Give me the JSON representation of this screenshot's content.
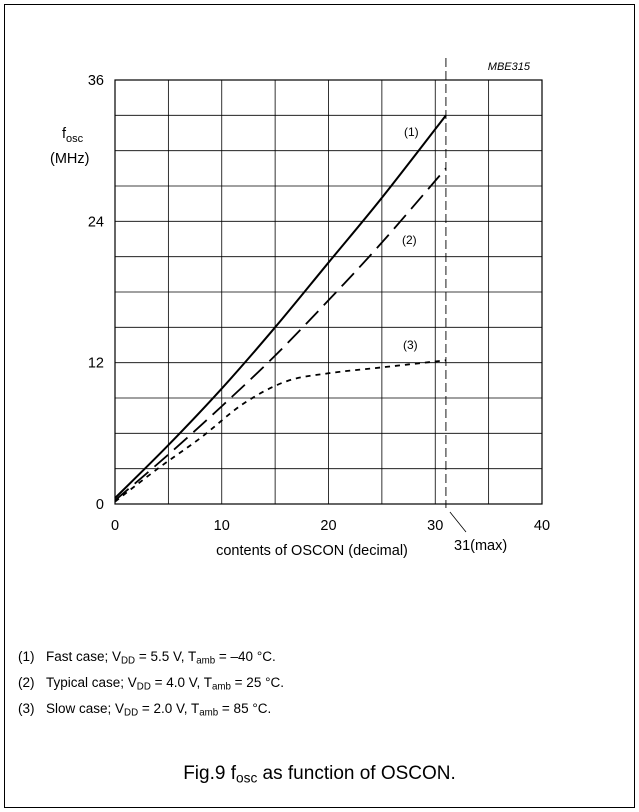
{
  "chart_data": {
    "type": "line",
    "code": "MBE315",
    "xlabel": "contents of OSCON (decimal)",
    "ylabel": {
      "main": "f",
      "sub": "osc",
      "unit": "(MHz)"
    },
    "xlim": [
      0,
      40
    ],
    "ylim": [
      0,
      36
    ],
    "x_ticks": [
      "0",
      "10",
      "20",
      "30",
      "40"
    ],
    "y_ticks": [
      "0",
      "12",
      "24",
      "36"
    ],
    "grid": true,
    "max_marker": {
      "x": 31,
      "label": "31(max)"
    },
    "series": [
      {
        "label": "(1)",
        "dash": "solid",
        "x": [
          0,
          5,
          10,
          15,
          20,
          25,
          31
        ],
        "y": [
          0.5,
          5,
          9.8,
          15,
          20.5,
          26,
          33
        ]
      },
      {
        "label": "(2)",
        "dash": "long",
        "x": [
          0,
          5,
          10,
          15,
          20,
          25,
          31
        ],
        "y": [
          0.3,
          4.2,
          8.3,
          12.6,
          17.3,
          22.2,
          28.5
        ]
      },
      {
        "label": "(3)",
        "dash": "short",
        "x": [
          0,
          4,
          8,
          12,
          16,
          20,
          25,
          31
        ],
        "y": [
          0.2,
          3,
          5.6,
          8.5,
          10.4,
          11.1,
          11.6,
          12.2
        ]
      }
    ]
  },
  "notes": [
    {
      "num": "(1)",
      "parts": [
        [
          "Fast case; V",
          ""
        ],
        [
          "DD",
          "sub"
        ],
        [
          " = 5.5 V, T",
          ""
        ],
        [
          "amb",
          "sub"
        ],
        [
          " = –40 °C.",
          ""
        ]
      ]
    },
    {
      "num": "(2)",
      "parts": [
        [
          "Typical case; V",
          ""
        ],
        [
          "DD",
          "sub"
        ],
        [
          " = 4.0 V, T",
          ""
        ],
        [
          "amb",
          "sub"
        ],
        [
          " = 25 °C.",
          ""
        ]
      ]
    },
    {
      "num": "(3)",
      "parts": [
        [
          "Slow case; V",
          ""
        ],
        [
          "DD",
          "sub"
        ],
        [
          " = 2.0 V, T",
          ""
        ],
        [
          "amb",
          "sub"
        ],
        [
          " = 85 °C.",
          ""
        ]
      ]
    }
  ],
  "caption": {
    "prefix": "Fig.9  f",
    "sub": "osc",
    "suffix": " as function of OSCON."
  }
}
